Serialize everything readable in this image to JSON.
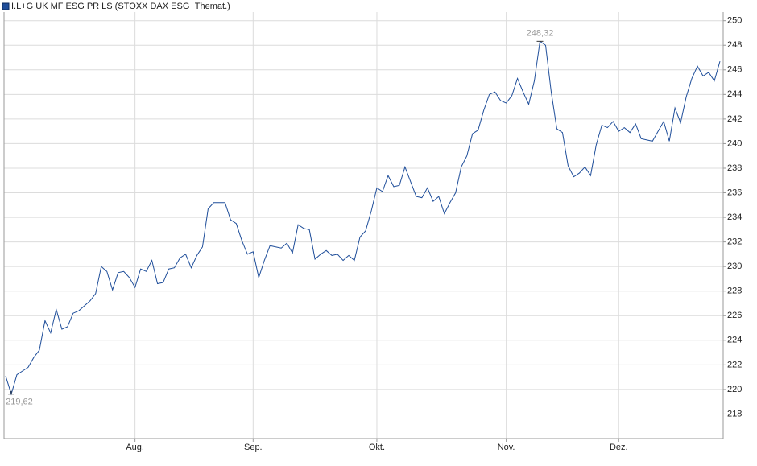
{
  "chart_data": {
    "type": "line",
    "title": "I.L+G UK MF ESG PR LS (STOXX DAX ESG+Themat.)",
    "series": [
      {
        "name": "I.L+G UK MF ESG PR LS (STOXX DAX ESG+Themat.)",
        "color": "#1f4e9a",
        "values": [
          221.1,
          219.62,
          221.2,
          221.5,
          221.8,
          222.6,
          223.2,
          225.6,
          224.6,
          226.5,
          224.9,
          225.1,
          226.2,
          226.4,
          226.8,
          227.2,
          227.8,
          230.0,
          229.6,
          228.1,
          229.5,
          229.6,
          229.1,
          228.3,
          229.8,
          229.6,
          230.5,
          228.6,
          228.7,
          229.8,
          229.9,
          230.7,
          231.0,
          229.9,
          230.9,
          231.6,
          234.7,
          235.2,
          235.2,
          235.2,
          233.8,
          233.5,
          232.1,
          231.0,
          231.2,
          229.1,
          230.5,
          231.7,
          231.6,
          231.5,
          231.9,
          231.1,
          233.4,
          233.1,
          233.0,
          230.6,
          231.0,
          231.3,
          230.9,
          231.0,
          230.5,
          230.9,
          230.5,
          232.4,
          232.9,
          234.5,
          236.4,
          236.1,
          237.4,
          236.5,
          236.6,
          238.1,
          236.9,
          235.7,
          235.6,
          236.4,
          235.3,
          235.7,
          234.3,
          235.2,
          236.0,
          238.1,
          239.0,
          240.8,
          241.1,
          242.7,
          244.0,
          244.2,
          243.5,
          243.3,
          243.9,
          245.3,
          244.2,
          243.2,
          245.1,
          248.32,
          248.0,
          244.2,
          241.2,
          240.9,
          238.2,
          237.3,
          237.6,
          238.1,
          237.4,
          239.9,
          241.5,
          241.3,
          241.8,
          241.0,
          241.3,
          240.9,
          241.6,
          240.4,
          240.3,
          240.2,
          241.0,
          241.8,
          240.2,
          242.9,
          241.7,
          243.8,
          245.3,
          246.3,
          245.5,
          245.8,
          245.1,
          246.7
        ]
      }
    ],
    "annotations": [
      {
        "x": 95,
        "label": "248,32",
        "position": "above"
      },
      {
        "x": 1,
        "label": "219,62",
        "position": "below"
      }
    ],
    "xlim": [
      0,
      127
    ],
    "xticks": [
      {
        "value": 23,
        "label": "Aug."
      },
      {
        "value": 44,
        "label": "Sep."
      },
      {
        "value": 66,
        "label": "Okt."
      },
      {
        "value": 89,
        "label": "Nov."
      },
      {
        "value": 109,
        "label": "Dez."
      }
    ],
    "ylim": [
      216,
      250.7
    ],
    "yticks": [
      218,
      220,
      222,
      224,
      226,
      228,
      230,
      232,
      234,
      236,
      238,
      240,
      242,
      244,
      246,
      248,
      250
    ],
    "grid": true
  }
}
